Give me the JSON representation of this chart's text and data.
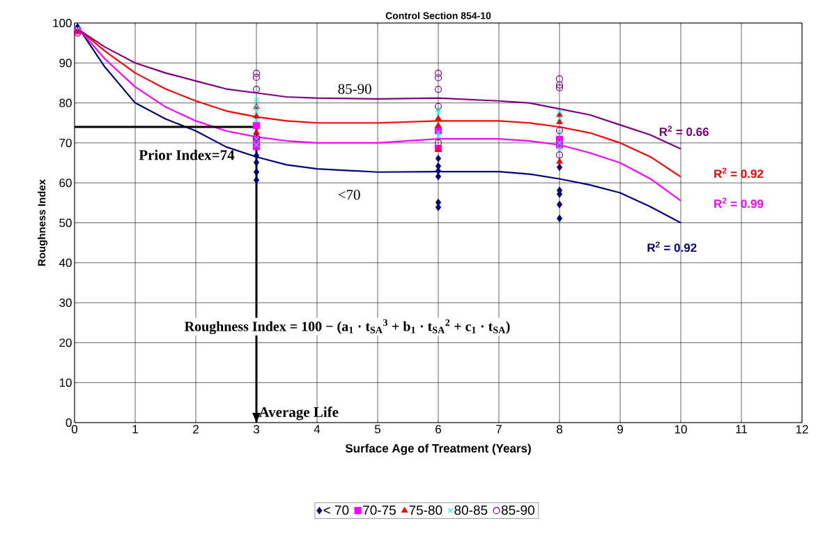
{
  "chart_data": {
    "type": "scatter",
    "title": "Control Section 854-10",
    "xlabel": "Surface Age of Treatment (Years)",
    "ylabel": "Roughness Index",
    "xlim": [
      0,
      12
    ],
    "ylim": [
      0,
      100
    ],
    "xticks": [
      0,
      1,
      2,
      3,
      4,
      5,
      6,
      7,
      8,
      9,
      10,
      11,
      12
    ],
    "yticks": [
      0,
      10,
      20,
      30,
      40,
      50,
      60,
      70,
      80,
      90,
      100
    ],
    "grid": true,
    "legend": "bottom",
    "series": [
      {
        "name": "< 70",
        "color": "#000080",
        "marker": "diamond",
        "x": [
          0.05,
          3,
          3,
          3,
          3,
          6,
          6,
          6,
          6,
          6,
          6,
          8,
          8,
          8,
          8,
          8
        ],
        "values": [
          99,
          66.8,
          65.1,
          62.7,
          60.7,
          66.1,
          64.2,
          63,
          61.6,
          55.1,
          53.9,
          63.9,
          58.1,
          57.2,
          54.6,
          51.1
        ]
      },
      {
        "name": "70-75",
        "color": "#ff00ff",
        "marker": "square",
        "x": [
          0.05,
          3,
          3,
          3,
          6,
          6,
          8,
          8
        ],
        "values": [
          98,
          74.3,
          70.9,
          69.1,
          73.1,
          68.6,
          70.9,
          69.5
        ]
      },
      {
        "name": "75-80",
        "color": "#ff0000",
        "marker": "triangle",
        "x": [
          0.05,
          3,
          3,
          3,
          6,
          6,
          6,
          8,
          8,
          8
        ],
        "values": [
          98,
          79,
          76.6,
          72.6,
          76.1,
          74.3,
          68.2,
          77,
          75.2,
          65.3
        ]
      },
      {
        "name": "80-85",
        "color": "#00ffff",
        "marker": "cross",
        "x": [
          0.05,
          3,
          3,
          3,
          3,
          3,
          3,
          6,
          6,
          6,
          6,
          8,
          8,
          8,
          8,
          8
        ],
        "values": [
          98.5,
          80.8,
          79.2,
          77.8,
          75.7,
          70.9,
          69.5,
          78.4,
          77.5,
          72.6,
          71.7,
          77.8,
          76.1,
          72.6,
          70,
          68.6
        ]
      },
      {
        "name": "85-90",
        "color": "#800080",
        "marker": "circle",
        "x": [
          0.05,
          3,
          3,
          3,
          3,
          6,
          6,
          6,
          6,
          6,
          8,
          8,
          8,
          8,
          8
        ],
        "values": [
          97.5,
          87.4,
          86.4,
          83.4,
          71.4,
          87.4,
          86.3,
          83.4,
          79.1,
          70,
          86,
          84.5,
          83.8,
          73.1,
          67
        ]
      },
      {
        "type": "line",
        "color": "#000080",
        "x": [
          0.1,
          0.5,
          1,
          1.5,
          2,
          2.5,
          3,
          3.5,
          4,
          5,
          6,
          7,
          7.5,
          8,
          8.5,
          9,
          9.5,
          10
        ],
        "values": [
          98,
          89,
          80,
          76,
          73,
          69,
          66.5,
          64.5,
          63.5,
          62.7,
          62.8,
          62.8,
          62.2,
          61,
          59.5,
          57.5,
          54,
          50
        ]
      },
      {
        "type": "line",
        "color": "#ff00ff",
        "x": [
          0.1,
          0.5,
          1,
          1.5,
          2,
          2.5,
          3,
          3.5,
          4,
          5,
          6,
          7,
          7.5,
          8,
          8.5,
          9,
          9.5,
          10
        ],
        "values": [
          98,
          91,
          84,
          79,
          75.5,
          73,
          71.5,
          70.5,
          70,
          70,
          71,
          71,
          70.5,
          69.5,
          67.5,
          65,
          61,
          55.5
        ]
      },
      {
        "type": "line",
        "color": "#ff0000",
        "x": [
          0.1,
          0.5,
          1,
          1.5,
          2,
          2.5,
          3,
          3.5,
          4,
          5,
          6,
          7,
          7.5,
          8,
          8.5,
          9,
          9.5,
          10
        ],
        "values": [
          98,
          93,
          87.5,
          83.5,
          80.5,
          78,
          76.5,
          75.5,
          75,
          75,
          75.5,
          75.5,
          75,
          74,
          72.5,
          70,
          66.5,
          61.5
        ]
      },
      {
        "type": "line",
        "color": "#800080",
        "x": [
          0.1,
          0.5,
          1,
          1.5,
          2,
          2.5,
          3,
          3.5,
          4,
          5,
          6,
          7,
          7.5,
          8,
          8.5,
          9,
          9.5,
          10
        ],
        "values": [
          98,
          94,
          90,
          87.5,
          85.5,
          83.5,
          82.5,
          81.5,
          81.2,
          81,
          81.2,
          80.5,
          80,
          78.5,
          77,
          74.5,
          72,
          68.5
        ]
      },
      {
        "type": "line",
        "color": "#000000",
        "x": [
          0,
          3,
          3
        ],
        "values": [
          74,
          74,
          0
        ]
      }
    ],
    "annotations": [
      "R$^{2}$ = 0.66",
      "R$^{2}$ = 0.92",
      "R$^{2}$ = 0.99",
      "R$^{2}$ = 0.92",
      "85-90",
      "<70",
      "Prior Index=74",
      "Average Life",
      "Roughness Index = 100 − (a$_{1}$ · t$_{SA}$$^{3}$ + b$_{1}$ · t$_{SA}$$^{2}$ + c$_{1}$ · t$_{SA}$)"
    ]
  }
}
